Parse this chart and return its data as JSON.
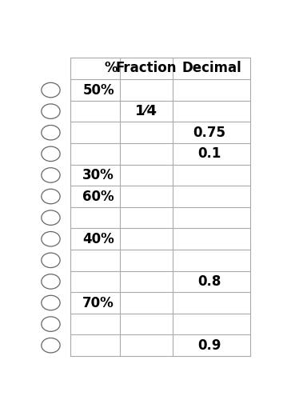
{
  "headers": [
    "%",
    "Fraction",
    "Decimal"
  ],
  "rows": [
    {
      "percent": "50%",
      "fraction": "",
      "decimal": ""
    },
    {
      "percent": "",
      "fraction": "1⁄4",
      "decimal": ""
    },
    {
      "percent": "",
      "fraction": "",
      "decimal": "0.75"
    },
    {
      "percent": "",
      "fraction": "",
      "decimal": "0.1"
    },
    {
      "percent": "30%",
      "fraction": "",
      "decimal": ""
    },
    {
      "percent": "60%",
      "fraction": "",
      "decimal": ""
    },
    {
      "percent": "",
      "fraction": "",
      "decimal": ""
    },
    {
      "percent": "40%",
      "fraction": "",
      "decimal": ""
    },
    {
      "percent": "",
      "fraction": "",
      "decimal": ""
    },
    {
      "percent": "",
      "fraction": "",
      "decimal": "0.8"
    },
    {
      "percent": "70%",
      "fraction": "",
      "decimal": ""
    },
    {
      "percent": "",
      "fraction": "",
      "decimal": ""
    },
    {
      "percent": "",
      "fraction": "",
      "decimal": "0.9"
    }
  ],
  "bg_color": "#ffffff",
  "line_color": "#aaaaaa",
  "text_color": "#000000",
  "header_fontsize": 12,
  "cell_fontsize": 12
}
